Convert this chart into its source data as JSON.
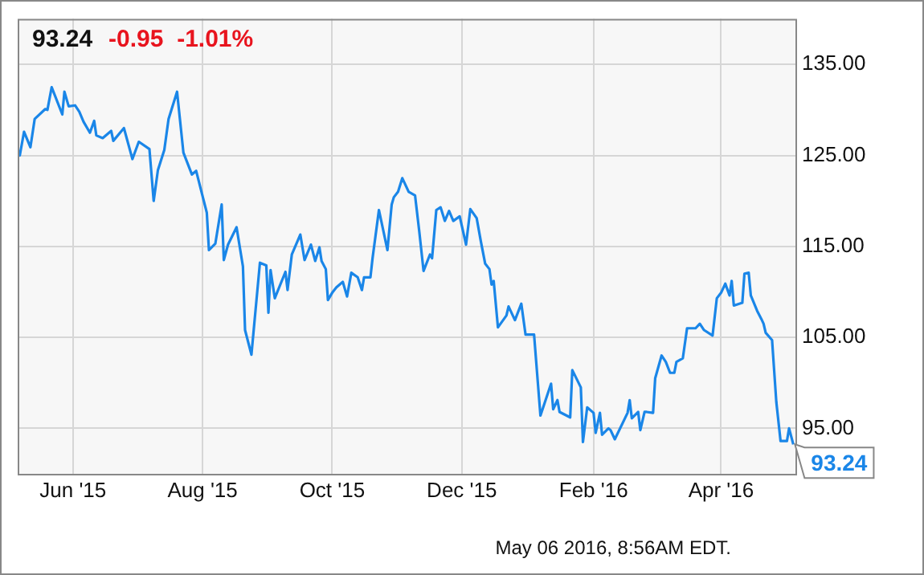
{
  "chart_data": {
    "type": "line",
    "title": "93.24",
    "subtitle": "-0.95  -1.01%",
    "annotations": [
      "May 06 2016, 8:56AM EDT."
    ],
    "x": [
      "2015-05-06",
      "2015-05-07",
      "2015-05-09",
      "2015-05-12",
      "2015-05-14",
      "2015-05-19",
      "2015-05-20",
      "2015-05-22",
      "2015-05-27",
      "2015-05-28",
      "2015-05-30",
      "2015-06-02",
      "2015-06-04",
      "2015-06-06",
      "2015-06-09",
      "2015-06-11",
      "2015-06-12",
      "2015-06-15",
      "2015-06-19",
      "2015-06-20",
      "2015-06-25",
      "2015-06-29",
      "2015-07-02",
      "2015-07-07",
      "2015-07-09",
      "2015-07-11",
      "2015-07-14",
      "2015-07-16",
      "2015-07-20",
      "2015-07-23",
      "2015-07-27",
      "2015-07-29",
      "2015-08-03",
      "2015-08-04",
      "2015-08-07",
      "2015-08-10",
      "2015-08-11",
      "2015-08-13",
      "2015-08-17",
      "2015-08-20",
      "2015-08-21",
      "2015-08-24",
      "2015-08-28",
      "2015-08-31",
      "2015-09-01",
      "2015-09-02",
      "2015-09-04",
      "2015-09-09",
      "2015-09-10",
      "2015-09-12",
      "2015-09-16",
      "2015-09-18",
      "2015-09-21",
      "2015-09-23",
      "2015-09-25",
      "2015-09-26",
      "2015-09-28",
      "2015-09-29",
      "2015-10-01",
      "2015-10-03",
      "2015-10-06",
      "2015-10-08",
      "2015-10-10",
      "2015-10-13",
      "2015-10-15",
      "2015-10-16",
      "2015-10-19",
      "2015-10-20",
      "2015-10-23",
      "2015-10-27",
      "2015-10-29",
      "2015-10-30",
      "2015-11-01",
      "2015-11-03",
      "2015-11-06",
      "2015-11-09",
      "2015-11-11",
      "2015-11-13",
      "2015-11-16",
      "2015-11-17",
      "2015-11-19",
      "2015-11-21",
      "2015-11-23",
      "2015-11-25",
      "2015-11-27",
      "2015-11-30",
      "2015-12-03",
      "2015-12-05",
      "2015-12-08",
      "2015-12-10",
      "2015-12-12",
      "2015-12-14",
      "2015-12-15",
      "2015-12-16",
      "2015-12-18",
      "2015-12-22",
      "2015-12-23",
      "2015-12-26",
      "2015-12-29",
      "2015-12-31",
      "2016-01-04",
      "2016-01-07",
      "2016-01-12",
      "2016-01-13",
      "2016-01-15",
      "2016-01-16",
      "2016-01-21",
      "2016-01-22",
      "2016-01-26",
      "2016-01-27",
      "2016-01-29",
      "2016-02-01",
      "2016-02-02",
      "2016-02-04",
      "2016-02-05",
      "2016-02-08",
      "2016-02-09",
      "2016-02-11",
      "2016-02-17",
      "2016-02-18",
      "2016-02-19",
      "2016-02-22",
      "2016-02-23",
      "2016-02-25",
      "2016-02-26",
      "2016-02-29",
      "2016-03-01",
      "2016-03-04",
      "2016-03-06",
      "2016-03-08",
      "2016-03-10",
      "2016-03-11",
      "2016-03-14",
      "2016-03-16",
      "2016-03-20",
      "2016-03-22",
      "2016-03-24",
      "2016-03-28",
      "2016-03-30",
      "2016-04-01",
      "2016-04-03",
      "2016-04-05",
      "2016-04-06",
      "2016-04-07",
      "2016-04-11",
      "2016-04-12",
      "2016-04-14",
      "2016-04-15",
      "2016-04-18",
      "2016-04-20",
      "2016-04-21",
      "2016-04-22",
      "2016-04-25",
      "2016-04-27",
      "2016-04-29",
      "2016-05-02",
      "2016-05-03",
      "2016-05-05"
    ],
    "series": [
      {
        "color": "#1a86e8",
        "values": [
          125.7,
          125.0,
          127.6,
          125.9,
          129.0,
          130.1,
          130.0,
          132.5,
          129.5,
          132.0,
          130.4,
          130.5,
          129.8,
          128.7,
          127.5,
          128.8,
          127.2,
          126.9,
          127.7,
          126.6,
          128.0,
          124.6,
          126.5,
          125.7,
          120.0,
          123.4,
          125.6,
          129.0,
          132.0,
          125.3,
          122.9,
          123.3,
          118.7,
          114.6,
          115.3,
          119.6,
          113.5,
          115.2,
          117.1,
          112.8,
          105.8,
          103.1,
          113.2,
          112.9,
          107.7,
          112.4,
          109.3,
          112.2,
          110.2,
          114.1,
          116.3,
          113.5,
          115.2,
          113.4,
          114.9,
          113.4,
          112.5,
          109.1,
          109.9,
          110.5,
          111.1,
          109.5,
          112.1,
          111.6,
          110.2,
          111.6,
          111.6,
          113.7,
          119.0,
          114.6,
          119.6,
          120.4,
          121.0,
          122.5,
          121.0,
          120.6,
          116.6,
          112.3,
          114.1,
          113.7,
          119.0,
          119.3,
          117.8,
          118.9,
          117.8,
          118.3,
          115.2,
          119.1,
          118.1,
          115.5,
          113.1,
          112.5,
          110.8,
          111.2,
          106.1,
          107.4,
          108.4,
          106.9,
          108.7,
          105.3,
          105.3,
          96.4,
          99.9,
          97.1,
          98.1,
          96.8,
          96.2,
          101.4,
          99.5,
          93.5,
          97.3,
          96.7,
          94.5,
          96.7,
          94.3,
          95.0,
          94.8,
          93.8,
          96.7,
          98.1,
          96.1,
          96.8,
          94.8,
          96.8,
          96.8,
          96.7,
          100.5,
          103.0,
          102.3,
          101.1,
          101.1,
          102.3,
          102.7,
          106.0,
          106.0,
          106.5,
          105.8,
          105.2,
          109.3,
          109.9,
          110.9,
          109.6,
          111.2,
          108.5,
          108.8,
          112.0,
          112.1,
          109.6,
          107.9,
          107.0,
          106.5,
          105.5,
          104.7,
          97.9,
          93.6,
          93.6,
          95.0,
          93.24
        ],
        "value_labels": [
          null,
          null,
          null,
          null,
          null,
          null,
          null,
          null,
          null,
          null,
          null,
          null,
          null,
          null,
          null,
          null,
          null,
          null,
          null,
          null,
          null,
          null,
          null,
          null,
          null,
          null,
          null,
          null,
          null,
          null,
          null,
          null,
          null,
          null,
          null,
          null,
          null,
          null,
          null,
          null,
          null,
          null,
          null,
          null,
          null,
          null,
          null,
          null,
          null,
          null,
          null,
          null,
          null,
          null,
          null,
          null,
          null,
          null,
          null,
          null,
          null,
          null,
          null,
          null,
          null,
          null,
          null,
          null,
          null,
          null,
          null,
          null,
          null,
          null,
          null,
          null,
          null,
          null,
          null,
          null,
          null,
          null,
          null,
          null,
          null,
          null,
          null,
          null,
          null,
          null,
          null,
          null,
          null,
          null,
          null,
          null,
          null,
          null,
          null,
          null,
          null,
          null,
          null,
          null,
          null,
          null,
          null,
          null,
          null,
          null,
          null,
          null,
          null,
          null,
          null,
          null,
          null,
          null,
          null,
          null,
          null,
          null,
          null,
          null,
          null,
          null,
          null,
          null,
          null,
          null,
          null,
          null,
          null,
          null,
          null,
          null,
          null,
          null,
          null,
          null,
          null,
          null,
          null,
          null,
          null,
          null,
          null,
          null,
          null,
          null,
          null,
          null,
          null,
          null,
          null,
          null,
          null,
          "93.24"
        ]
      }
    ],
    "xlim": [
      "2015-05-06",
      "2016-05-06"
    ],
    "xticks": [
      {
        "value": "2015-06-01",
        "label": "Jun '15"
      },
      {
        "value": "2015-08-01",
        "label": "Aug '15"
      },
      {
        "value": "2015-10-01",
        "label": "Oct '15"
      },
      {
        "value": "2015-12-01",
        "label": "Dec '15"
      },
      {
        "value": "2016-02-01",
        "label": "Feb '16"
      },
      {
        "value": "2016-04-01",
        "label": "Apr '16"
      }
    ],
    "ylim": [
      90,
      140
    ],
    "yticks": [
      {
        "value": 95,
        "label": "95.00"
      },
      {
        "value": 105,
        "label": "105.00"
      },
      {
        "value": 115,
        "label": "115.00"
      },
      {
        "value": 125,
        "label": "125.00"
      },
      {
        "value": 135,
        "label": "135.00"
      }
    ],
    "grid": true,
    "marker": "none",
    "line_style": "solid"
  }
}
